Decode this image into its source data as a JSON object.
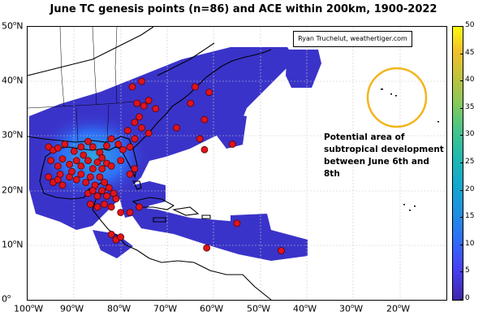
{
  "title": "June TC genesis points (n=86) and ACE within 200km, 1900-2022",
  "credit": "Ryan Truchelut, weathertiger.com",
  "annotation": [
    "Potential area of",
    "subtropical development",
    "between June 6th and 8th"
  ],
  "lat_labels": [
    {
      "value": "50",
      "hemi": "N"
    },
    {
      "value": "40",
      "hemi": "N"
    },
    {
      "value": "30",
      "hemi": "N"
    },
    {
      "value": "20",
      "hemi": "N"
    },
    {
      "value": "10",
      "hemi": "N"
    },
    {
      "value": "0",
      "hemi": ""
    }
  ],
  "lon_labels": [
    {
      "value": "100",
      "hemi": "W"
    },
    {
      "value": "90",
      "hemi": "W"
    },
    {
      "value": "80",
      "hemi": "W"
    },
    {
      "value": "70",
      "hemi": "W"
    },
    {
      "value": "60",
      "hemi": "W"
    },
    {
      "value": "50",
      "hemi": "W"
    },
    {
      "value": "40",
      "hemi": "W"
    },
    {
      "value": "30",
      "hemi": "W"
    },
    {
      "value": "20",
      "hemi": "W"
    }
  ],
  "colorbar_ticks": [
    "50",
    "45",
    "40",
    "35",
    "30",
    "25",
    "20",
    "15",
    "10",
    "5",
    "0"
  ],
  "colors": {
    "ace_low": "#3a33c9",
    "ace_high": "#2fa4e0",
    "genesis_fill": "#e0141b",
    "annotation_circle": "#f2b51c"
  },
  "genesis_points": [
    {
      "lon": -95.5,
      "lat": 28.0
    },
    {
      "lon": -94.5,
      "lat": 27.4
    },
    {
      "lon": -93.5,
      "lat": 27.8
    },
    {
      "lon": -92.0,
      "lat": 28.5
    },
    {
      "lon": -90.0,
      "lat": 27.2
    },
    {
      "lon": -88.5,
      "lat": 28.0
    },
    {
      "lon": -87.0,
      "lat": 29.0
    },
    {
      "lon": -86.0,
      "lat": 28.0
    },
    {
      "lon": -84.5,
      "lat": 27.0
    },
    {
      "lon": -83.0,
      "lat": 28.2
    },
    {
      "lon": -82.0,
      "lat": 29.5
    },
    {
      "lon": -80.5,
      "lat": 28.5
    },
    {
      "lon": -95.0,
      "lat": 25.5
    },
    {
      "lon": -93.5,
      "lat": 24.5
    },
    {
      "lon": -92.5,
      "lat": 25.8
    },
    {
      "lon": -91.0,
      "lat": 24.8
    },
    {
      "lon": -89.5,
      "lat": 25.5
    },
    {
      "lon": -88.5,
      "lat": 24.5
    },
    {
      "lon": -87.0,
      "lat": 25.5
    },
    {
      "lon": -86.0,
      "lat": 24.0
    },
    {
      "lon": -85.0,
      "lat": 25.2
    },
    {
      "lon": -84.0,
      "lat": 24.0
    },
    {
      "lon": -83.0,
      "lat": 25.0
    },
    {
      "lon": -82.0,
      "lat": 24.5
    },
    {
      "lon": -95.5,
      "lat": 22.5
    },
    {
      "lon": -94.5,
      "lat": 21.5
    },
    {
      "lon": -93.5,
      "lat": 22.0
    },
    {
      "lon": -92.5,
      "lat": 21.0
    },
    {
      "lon": -91.0,
      "lat": 22.5
    },
    {
      "lon": -89.5,
      "lat": 22.0
    },
    {
      "lon": -88.5,
      "lat": 23.0
    },
    {
      "lon": -87.5,
      "lat": 21.5
    },
    {
      "lon": -86.5,
      "lat": 22.5
    },
    {
      "lon": -85.5,
      "lat": 21.0
    },
    {
      "lon": -84.5,
      "lat": 22.5
    },
    {
      "lon": -83.5,
      "lat": 21.5
    },
    {
      "lon": -87.0,
      "lat": 19.5
    },
    {
      "lon": -86.0,
      "lat": 20.0
    },
    {
      "lon": -85.0,
      "lat": 19.0
    },
    {
      "lon": -84.0,
      "lat": 20.0
    },
    {
      "lon": -83.0,
      "lat": 19.0
    },
    {
      "lon": -82.5,
      "lat": 20.5
    },
    {
      "lon": -81.5,
      "lat": 19.5
    },
    {
      "lon": -86.5,
      "lat": 17.5
    },
    {
      "lon": -85.0,
      "lat": 17.0
    },
    {
      "lon": -83.5,
      "lat": 17.5
    },
    {
      "lon": -82.0,
      "lat": 17.0
    },
    {
      "lon": -81.0,
      "lat": 18.5
    },
    {
      "lon": -80.0,
      "lat": 16.0
    },
    {
      "lon": -78.0,
      "lat": 16.0
    },
    {
      "lon": -76.0,
      "lat": 17.0
    },
    {
      "lon": -82.0,
      "lat": 12.0
    },
    {
      "lon": -81.0,
      "lat": 11.0
    },
    {
      "lon": -80.0,
      "lat": 11.5
    },
    {
      "lon": -78.0,
      "lat": 23.0
    },
    {
      "lon": -77.0,
      "lat": 24.0
    },
    {
      "lon": -79.5,
      "lat": 27.5
    },
    {
      "lon": -78.0,
      "lat": 28.0
    },
    {
      "lon": -77.0,
      "lat": 29.5
    },
    {
      "lon": -78.5,
      "lat": 31.0
    },
    {
      "lon": -77.0,
      "lat": 32.5
    },
    {
      "lon": -76.0,
      "lat": 33.5
    },
    {
      "lon": -75.5,
      "lat": 31.5
    },
    {
      "lon": -74.0,
      "lat": 30.5
    },
    {
      "lon": -76.5,
      "lat": 36.0
    },
    {
      "lon": -75.0,
      "lat": 35.5
    },
    {
      "lon": -74.0,
      "lat": 36.5
    },
    {
      "lon": -72.5,
      "lat": 35.0
    },
    {
      "lon": -77.5,
      "lat": 39.0
    },
    {
      "lon": -75.5,
      "lat": 40.0
    },
    {
      "lon": -64.0,
      "lat": 39.0
    },
    {
      "lon": -61.0,
      "lat": 38.0
    },
    {
      "lon": -65.0,
      "lat": 36.0
    },
    {
      "lon": -68.0,
      "lat": 31.5
    },
    {
      "lon": -62.0,
      "lat": 33.0
    },
    {
      "lon": -63.0,
      "lat": 29.5
    },
    {
      "lon": -62.0,
      "lat": 27.5
    },
    {
      "lon": -56.0,
      "lat": 28.5
    },
    {
      "lon": -55.0,
      "lat": 14.0
    },
    {
      "lon": -61.5,
      "lat": 9.5
    },
    {
      "lon": -45.5,
      "lat": 9.0
    },
    {
      "lon": -88.0,
      "lat": 26.5
    },
    {
      "lon": -90.5,
      "lat": 23.5
    },
    {
      "lon": -93.0,
      "lat": 23.0
    },
    {
      "lon": -84.0,
      "lat": 26.0
    },
    {
      "lon": -80.0,
      "lat": 25.5
    }
  ]
}
